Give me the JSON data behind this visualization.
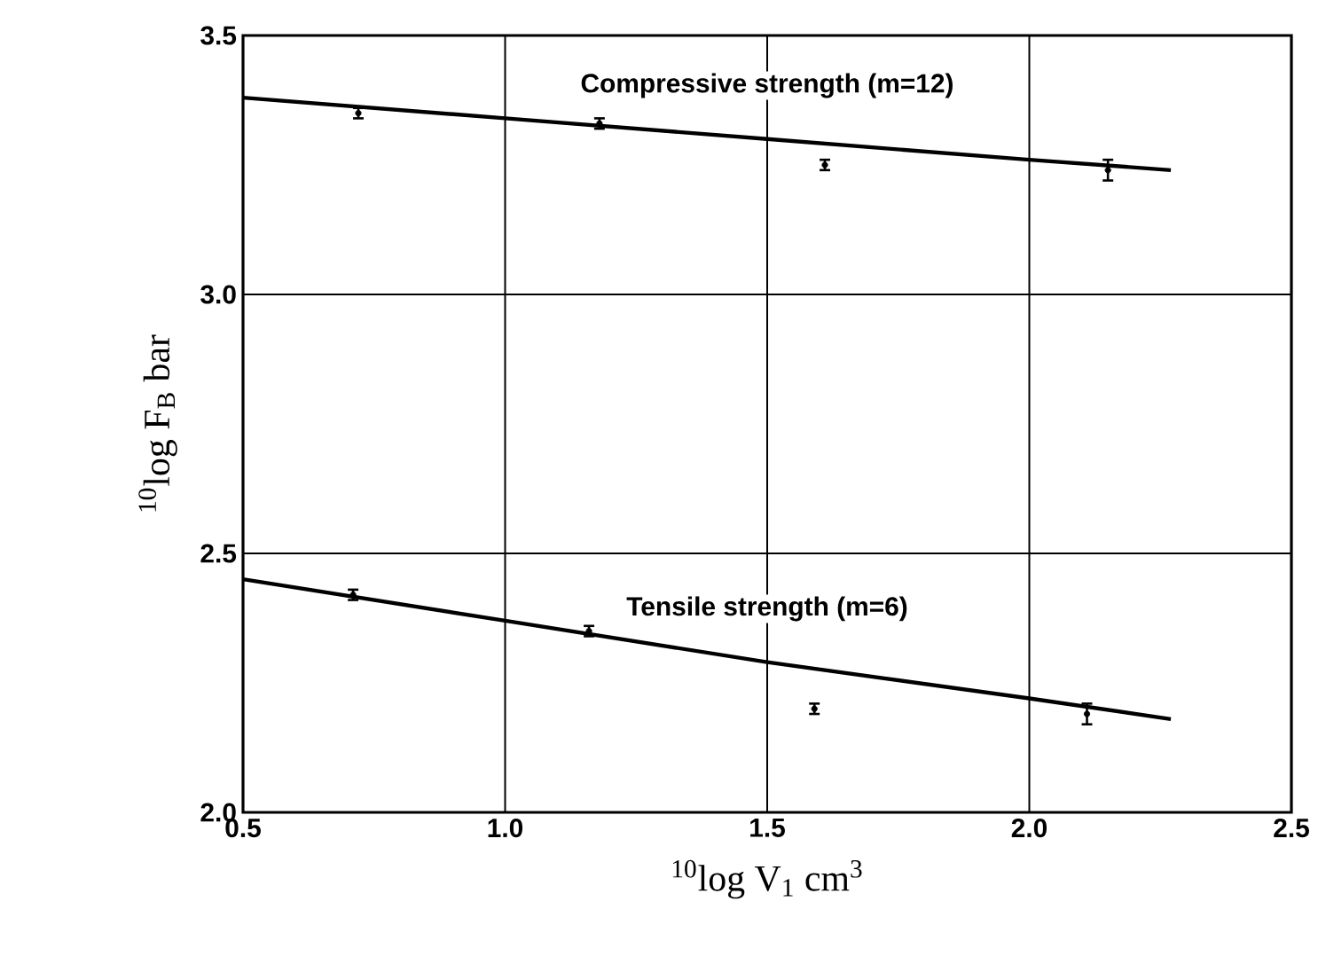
{
  "chart_data": {
    "type": "line",
    "xlabel": "$^{10}$log V$_{1}$  cm$^{3}$",
    "ylabel": "$^{10}$log F$_{B}$  bar",
    "xlim": [
      0.5,
      2.5
    ],
    "ylim": [
      2.0,
      3.5
    ],
    "xticks": [
      {
        "value": 0.5,
        "label": "0.5"
      },
      {
        "value": 1,
        "label": "1.0"
      },
      {
        "value": 1.5,
        "label": "1.5"
      },
      {
        "value": 2,
        "label": "2.0"
      },
      {
        "value": 2.5,
        "label": "2.5"
      }
    ],
    "yticks": [
      {
        "value": 2,
        "label": "2.0"
      },
      {
        "value": 2.5,
        "label": "2.5"
      },
      {
        "value": 3,
        "label": "3.0"
      },
      {
        "value": 3.5,
        "label": "3.5"
      }
    ],
    "grid": true,
    "series": [
      {
        "name": "Compressive strength (m=12)",
        "color": "#000000",
        "x": [
          0.5,
          1.0,
          1.5,
          2.0,
          2.27
        ],
        "values": [
          3.38,
          3.34,
          3.3,
          3.26,
          3.24
        ]
      },
      {
        "type": "scatter",
        "color": "#000000",
        "x": [
          0.72,
          1.18,
          1.61,
          2.15
        ],
        "values": [
          3.35,
          3.33,
          3.25,
          3.24
        ],
        "errors": [
          0.01,
          0.01,
          0.01,
          0.02
        ]
      },
      {
        "name": "Tensile strength (m=6)",
        "color": "#000000",
        "x": [
          0.5,
          1.0,
          1.5,
          2.0,
          2.27
        ],
        "values": [
          2.45,
          2.37,
          2.29,
          2.22,
          2.18
        ]
      },
      {
        "type": "scatter",
        "color": "#000000",
        "x": [
          0.71,
          1.16,
          1.59,
          2.11
        ],
        "values": [
          2.42,
          2.35,
          2.2,
          2.19
        ],
        "errors": [
          0.01,
          0.01,
          0.01,
          0.02
        ]
      }
    ]
  }
}
